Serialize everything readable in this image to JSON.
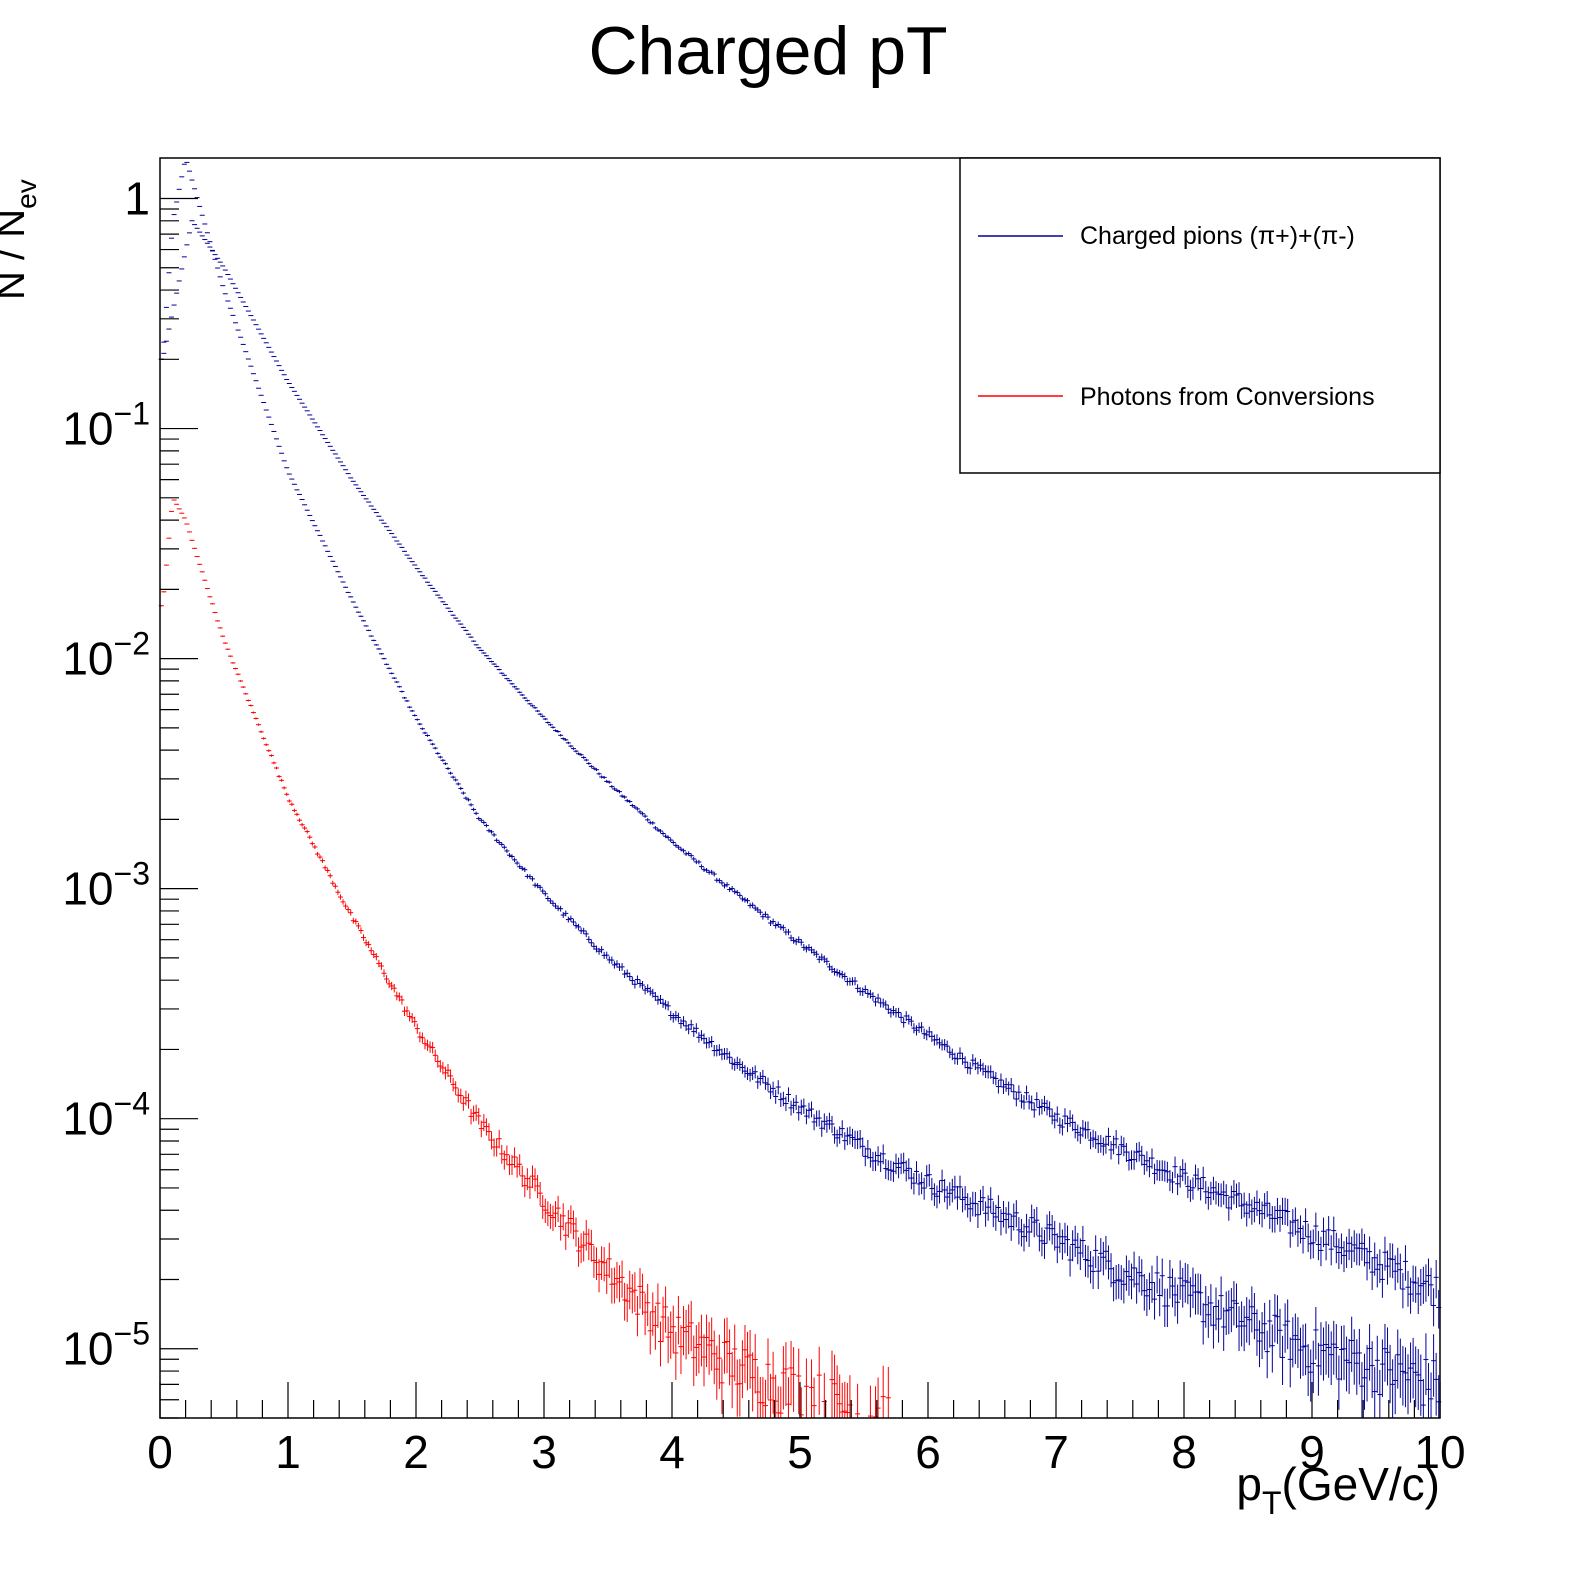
{
  "chart_data": {
    "type": "scatter",
    "title": "Charged pT",
    "xlabel": {
      "main": "p",
      "sub": "T",
      "rest": "(GeV/c)"
    },
    "ylabel": {
      "main": "N / N",
      "sub": "ev"
    },
    "x_range": [
      0,
      10
    ],
    "y_range": [
      5e-06,
      1.5
    ],
    "y_scale": "log",
    "x_ticks": [
      "0",
      "1",
      "2",
      "3",
      "4",
      "5",
      "6",
      "7",
      "8",
      "9",
      "10"
    ],
    "y_ticks": [
      {
        "value": 1,
        "base": "1",
        "exp": ""
      },
      {
        "value": 0.1,
        "base": "10",
        "exp": "−1"
      },
      {
        "value": 0.01,
        "base": "10",
        "exp": "−2"
      },
      {
        "value": 0.001,
        "base": "10",
        "exp": "−3"
      },
      {
        "value": 0.0001,
        "base": "10",
        "exp": "−4"
      },
      {
        "value": 1e-05,
        "base": "10",
        "exp": "−5"
      }
    ],
    "grid": false,
    "legend_position": "top-right",
    "legend": [
      {
        "label": "Charged pions (π+)+(π-)",
        "color": "#000099"
      },
      {
        "label": "Photons from Conversions",
        "color": "#ff0000"
      }
    ],
    "series": [
      {
        "color": "#000099",
        "style": "points-with-error-bars",
        "x": [
          0.02,
          0.25,
          0.5,
          1.0,
          1.5,
          2.0,
          2.5,
          3.0,
          3.5,
          4.0,
          4.5,
          5.0,
          5.5,
          6.0,
          6.5,
          7.0,
          7.5,
          8.0,
          8.5,
          9.0,
          9.5,
          10.0
        ],
        "y": [
          0.2,
          0.8,
          0.5,
          0.16,
          0.06,
          0.025,
          0.011,
          0.0055,
          0.0029,
          0.0016,
          0.00095,
          0.00058,
          0.00036,
          0.00023,
          0.00015,
          0.000102,
          7.5e-05,
          5.5e-05,
          4.2e-05,
          3.2e-05,
          2.4e-05,
          1.8e-05
        ]
      },
      {
        "color": "#000099",
        "style": "points-with-error-bars",
        "x": [
          0.02,
          0.1,
          0.2,
          0.5,
          1.0,
          1.5,
          2.0,
          2.5,
          3.0,
          3.5,
          4.0,
          4.5,
          5.0,
          5.5,
          6.0,
          6.5,
          7.0,
          7.5,
          8.0,
          8.5,
          9.0,
          9.5,
          10.0
        ],
        "y": [
          0.2,
          0.8,
          1.5,
          0.4,
          0.065,
          0.018,
          0.0055,
          0.002,
          0.00095,
          0.0005,
          0.00029,
          0.000175,
          0.000112,
          7.5e-05,
          5.3e-05,
          4e-05,
          3e-05,
          2.2e-05,
          1.7e-05,
          1.3e-05,
          1e-05,
          8.5e-06,
          7e-06
        ]
      },
      {
        "color": "#ff0000",
        "style": "points-with-error-bars",
        "x": [
          0.02,
          0.1,
          0.2,
          0.5,
          1.0,
          1.5,
          2.0,
          2.5,
          3.0,
          3.5,
          4.0,
          4.5,
          5.0,
          5.5,
          5.7
        ],
        "y": [
          0.017,
          0.05,
          0.04,
          0.012,
          0.0025,
          0.00075,
          0.00025,
          9.5e-05,
          4.5e-05,
          2.2e-05,
          1.2e-05,
          8.5e-06,
          6.5e-06,
          5.2e-06,
          5e-06
        ]
      }
    ]
  }
}
